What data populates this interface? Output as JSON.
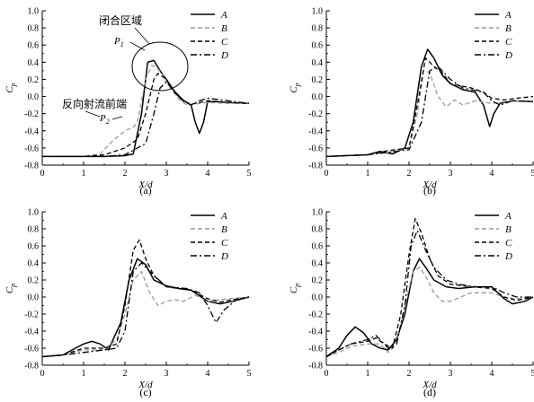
{
  "figure": {
    "panel_labels": [
      "(a)",
      "(b)",
      "(c)",
      "(d)"
    ]
  },
  "chart_data": [
    {
      "type": "line",
      "panel": "(a)",
      "xlabel": "X/d",
      "ylabel": "C_p",
      "xlim": [
        0,
        5
      ],
      "ylim": [
        -0.8,
        1.0
      ],
      "xticks": [
        "0",
        "1",
        "2",
        "3",
        "4",
        "5"
      ],
      "yticks": [
        "-0.8",
        "-0.6",
        "-0.4",
        "-0.2",
        "0.0",
        "0.2",
        "0.4",
        "0.6",
        "0.8",
        "1.0"
      ],
      "grid": false,
      "legend": "top-right",
      "annotations": [
        {
          "text": "闭合区域",
          "target": "P1 peak (ellipse)"
        },
        {
          "text": "P",
          "sub": "1"
        },
        {
          "text": "反向射流前端"
        },
        {
          "text": "P",
          "sub": "2"
        }
      ],
      "series": [
        {
          "name": "A",
          "style": "solid",
          "color": "#000000",
          "x": [
            0,
            1.5,
            2.0,
            2.2,
            2.4,
            2.55,
            2.7,
            2.85,
            3.0,
            3.2,
            3.4,
            3.6,
            3.7,
            3.8,
            3.9,
            4.0,
            4.2,
            4.5,
            5.0
          ],
          "y": [
            -0.7,
            -0.7,
            -0.69,
            -0.67,
            -0.2,
            0.4,
            0.42,
            0.3,
            0.2,
            0.06,
            -0.04,
            -0.1,
            -0.3,
            -0.43,
            -0.3,
            -0.06,
            -0.06,
            -0.07,
            -0.08
          ]
        },
        {
          "name": "B",
          "style": "dashed",
          "color": "#999999",
          "x": [
            0,
            1.0,
            1.4,
            1.7,
            2.0,
            2.2,
            2.3,
            2.5,
            2.65,
            2.75,
            2.9,
            3.1,
            3.3,
            3.5,
            4.0,
            4.5,
            5.0
          ],
          "y": [
            -0.7,
            -0.7,
            -0.67,
            -0.52,
            -0.4,
            -0.36,
            -0.3,
            0.2,
            0.36,
            0.35,
            0.26,
            0.1,
            -0.03,
            -0.1,
            -0.07,
            -0.08,
            -0.08
          ]
        },
        {
          "name": "C",
          "style": "dashed",
          "color": "#000000",
          "x": [
            0,
            1.0,
            1.5,
            2.0,
            2.3,
            2.5,
            2.7,
            2.8,
            3.0,
            3.2,
            3.4,
            3.6,
            4.0,
            4.5,
            5.0
          ],
          "y": [
            -0.7,
            -0.7,
            -0.68,
            -0.6,
            -0.5,
            -0.2,
            0.2,
            0.27,
            0.2,
            0.05,
            -0.05,
            -0.09,
            -0.05,
            -0.07,
            -0.08
          ]
        },
        {
          "name": "D",
          "style": "dashdot",
          "color": "#000000",
          "x": [
            0,
            1.5,
            2.0,
            2.3,
            2.5,
            2.7,
            2.85,
            3.0,
            3.2,
            3.4,
            3.6,
            3.8,
            4.0,
            4.5,
            5.0
          ],
          "y": [
            -0.7,
            -0.7,
            -0.68,
            -0.6,
            -0.55,
            -0.2,
            0.1,
            0.17,
            0.05,
            -0.05,
            -0.1,
            -0.05,
            -0.02,
            -0.05,
            -0.08
          ]
        }
      ]
    },
    {
      "type": "line",
      "panel": "(b)",
      "xlabel": "X/d",
      "ylabel": "C_p",
      "xlim": [
        0,
        5
      ],
      "ylim": [
        -0.8,
        1.0
      ],
      "xticks": [
        "0",
        "1",
        "2",
        "3",
        "4",
        "5"
      ],
      "yticks": [
        "-0.8",
        "-0.6",
        "-0.4",
        "-0.2",
        "0.0",
        "0.2",
        "0.4",
        "0.6",
        "0.8",
        "1.0"
      ],
      "grid": false,
      "legend": "top-right",
      "series": [
        {
          "name": "A",
          "style": "solid",
          "color": "#000000",
          "x": [
            0,
            1.0,
            1.3,
            1.6,
            1.9,
            2.1,
            2.3,
            2.45,
            2.6,
            2.8,
            3.0,
            3.3,
            3.6,
            3.8,
            3.95,
            4.05,
            4.2,
            4.5,
            5.0
          ],
          "y": [
            -0.7,
            -0.68,
            -0.64,
            -0.67,
            -0.6,
            -0.3,
            0.35,
            0.55,
            0.45,
            0.25,
            0.15,
            0.08,
            0.05,
            -0.1,
            -0.35,
            -0.2,
            -0.08,
            -0.05,
            -0.06
          ]
        },
        {
          "name": "B",
          "style": "dashed",
          "color": "#999999",
          "x": [
            0,
            1.0,
            1.5,
            2.0,
            2.2,
            2.35,
            2.5,
            2.7,
            2.9,
            3.1,
            3.3,
            3.6,
            4.0,
            4.5,
            5.0
          ],
          "y": [
            -0.7,
            -0.68,
            -0.65,
            -0.6,
            -0.2,
            0.3,
            0.28,
            0.0,
            -0.12,
            -0.04,
            -0.1,
            -0.05,
            -0.08,
            -0.05,
            -0.05
          ]
        },
        {
          "name": "C",
          "style": "dashed",
          "color": "#000000",
          "x": [
            0,
            1.0,
            1.5,
            2.0,
            2.2,
            2.4,
            2.6,
            2.8,
            3.0,
            3.3,
            3.5,
            3.8,
            4.0,
            4.3,
            4.6,
            5.0
          ],
          "y": [
            -0.7,
            -0.68,
            -0.63,
            -0.6,
            -0.1,
            0.45,
            0.35,
            0.28,
            0.15,
            0.12,
            0.1,
            0.05,
            -0.02,
            -0.04,
            -0.02,
            0.0
          ]
        },
        {
          "name": "D",
          "style": "dashdot",
          "color": "#000000",
          "x": [
            0,
            1.0,
            1.5,
            2.0,
            2.3,
            2.5,
            2.7,
            3.0,
            3.3,
            3.6,
            3.8,
            4.0,
            4.2,
            4.5,
            5.0
          ],
          "y": [
            -0.7,
            -0.68,
            -0.65,
            -0.62,
            -0.3,
            0.3,
            0.35,
            0.2,
            0.1,
            0.07,
            0.05,
            -0.05,
            -0.1,
            -0.05,
            -0.06
          ]
        }
      ]
    },
    {
      "type": "line",
      "panel": "(c)",
      "xlabel": "X/d",
      "ylabel": "C_p",
      "xlim": [
        0,
        5
      ],
      "ylim": [
        -0.8,
        1.0
      ],
      "xticks": [
        "0",
        "1",
        "2",
        "3",
        "4",
        "5"
      ],
      "yticks": [
        "-0.8",
        "-0.6",
        "-0.4",
        "-0.2",
        "0.0",
        "0.2",
        "0.4",
        "0.6",
        "0.8",
        "1.0"
      ],
      "grid": false,
      "legend": "top-right",
      "series": [
        {
          "name": "A",
          "style": "solid",
          "color": "#000000",
          "x": [
            0,
            0.5,
            0.8,
            1.0,
            1.2,
            1.4,
            1.6,
            1.9,
            2.1,
            2.3,
            2.5,
            2.7,
            3.0,
            3.3,
            3.6,
            4.0,
            4.3,
            4.6,
            5.0
          ],
          "y": [
            -0.7,
            -0.68,
            -0.6,
            -0.55,
            -0.52,
            -0.55,
            -0.62,
            -0.3,
            0.2,
            0.45,
            0.38,
            0.2,
            0.13,
            0.1,
            0.08,
            -0.05,
            -0.08,
            -0.05,
            0.0
          ]
        },
        {
          "name": "B",
          "style": "dashed",
          "color": "#999999",
          "x": [
            0,
            0.5,
            1.0,
            1.5,
            1.8,
            2.0,
            2.2,
            2.4,
            2.6,
            2.8,
            3.0,
            3.2,
            3.4,
            3.7,
            4.0,
            4.5,
            5.0
          ],
          "y": [
            -0.7,
            -0.68,
            -0.62,
            -0.62,
            -0.5,
            -0.2,
            0.2,
            0.3,
            0.05,
            -0.1,
            -0.05,
            -0.03,
            -0.05,
            0.02,
            -0.05,
            -0.02,
            0.0
          ]
        },
        {
          "name": "C",
          "style": "dashed",
          "color": "#000000",
          "x": [
            0,
            0.5,
            1.0,
            1.5,
            1.8,
            2.0,
            2.2,
            2.35,
            2.5,
            2.7,
            3.0,
            3.3,
            3.6,
            4.0,
            4.3,
            4.6,
            5.0
          ],
          "y": [
            -0.7,
            -0.68,
            -0.6,
            -0.6,
            -0.55,
            -0.1,
            0.55,
            0.67,
            0.45,
            0.25,
            0.12,
            0.1,
            0.08,
            -0.02,
            -0.06,
            -0.03,
            0.0
          ]
        },
        {
          "name": "D",
          "style": "dashdot",
          "color": "#000000",
          "x": [
            0,
            0.5,
            1.0,
            1.5,
            1.8,
            2.0,
            2.2,
            2.4,
            2.6,
            3.0,
            3.5,
            3.8,
            4.0,
            4.2,
            4.4,
            4.7,
            5.0
          ],
          "y": [
            -0.7,
            -0.68,
            -0.65,
            -0.62,
            -0.6,
            -0.4,
            0.3,
            0.4,
            0.3,
            0.12,
            0.1,
            0.05,
            -0.1,
            -0.3,
            -0.15,
            -0.03,
            0.0
          ]
        }
      ]
    },
    {
      "type": "line",
      "panel": "(d)",
      "xlabel": "X/d",
      "ylabel": "C_p",
      "xlim": [
        0,
        5
      ],
      "ylim": [
        -0.8,
        1.0
      ],
      "xticks": [
        "0",
        "1",
        "2",
        "3",
        "4",
        "5"
      ],
      "yticks": [
        "-0.8",
        "-0.6",
        "-0.4",
        "-0.2",
        "0.0",
        "0.2",
        "0.4",
        "0.6",
        "0.8",
        "1.0"
      ],
      "grid": false,
      "legend": "top-right",
      "series": [
        {
          "name": "A",
          "style": "solid",
          "color": "#000000",
          "x": [
            0,
            0.3,
            0.5,
            0.7,
            0.9,
            1.1,
            1.3,
            1.5,
            1.7,
            1.9,
            2.1,
            2.25,
            2.4,
            2.6,
            2.9,
            3.2,
            3.6,
            4.0,
            4.3,
            4.5,
            4.8,
            5.0
          ],
          "y": [
            -0.7,
            -0.6,
            -0.45,
            -0.35,
            -0.42,
            -0.55,
            -0.6,
            -0.62,
            -0.5,
            -0.2,
            0.3,
            0.45,
            0.35,
            0.2,
            0.12,
            0.1,
            0.12,
            0.12,
            -0.02,
            -0.08,
            -0.05,
            0.0
          ]
        },
        {
          "name": "B",
          "style": "dashed",
          "color": "#999999",
          "x": [
            0,
            0.3,
            0.6,
            1.0,
            1.3,
            1.5,
            1.7,
            1.9,
            2.1,
            2.25,
            2.4,
            2.6,
            2.8,
            3.0,
            3.5,
            4.0,
            4.3,
            4.6,
            5.0
          ],
          "y": [
            -0.7,
            -0.65,
            -0.58,
            -0.55,
            -0.55,
            -0.65,
            -0.55,
            -0.1,
            0.3,
            0.35,
            0.25,
            0.05,
            -0.05,
            -0.05,
            0.05,
            0.05,
            0.0,
            -0.02,
            0.0
          ]
        },
        {
          "name": "C",
          "style": "dashed",
          "color": "#000000",
          "x": [
            0,
            0.3,
            0.6,
            1.0,
            1.2,
            1.4,
            1.6,
            1.8,
            2.0,
            2.15,
            2.3,
            2.5,
            2.7,
            3.0,
            3.5,
            4.0,
            4.3,
            4.6,
            5.0
          ],
          "y": [
            -0.7,
            -0.62,
            -0.55,
            -0.52,
            -0.48,
            -0.55,
            -0.6,
            -0.2,
            0.5,
            0.92,
            0.75,
            0.45,
            0.25,
            0.15,
            0.12,
            0.1,
            0.0,
            -0.04,
            0.0
          ]
        },
        {
          "name": "D",
          "style": "dashdot",
          "color": "#000000",
          "x": [
            0,
            0.3,
            0.6,
            1.0,
            1.2,
            1.5,
            1.7,
            1.9,
            2.05,
            2.2,
            2.4,
            2.6,
            2.9,
            3.2,
            3.6,
            4.0,
            4.3,
            4.6,
            5.0
          ],
          "y": [
            -0.7,
            -0.62,
            -0.55,
            -0.5,
            -0.45,
            -0.6,
            -0.55,
            -0.1,
            0.6,
            0.78,
            0.55,
            0.35,
            0.2,
            0.15,
            0.12,
            0.12,
            0.05,
            0.0,
            0.0
          ]
        }
      ]
    }
  ]
}
